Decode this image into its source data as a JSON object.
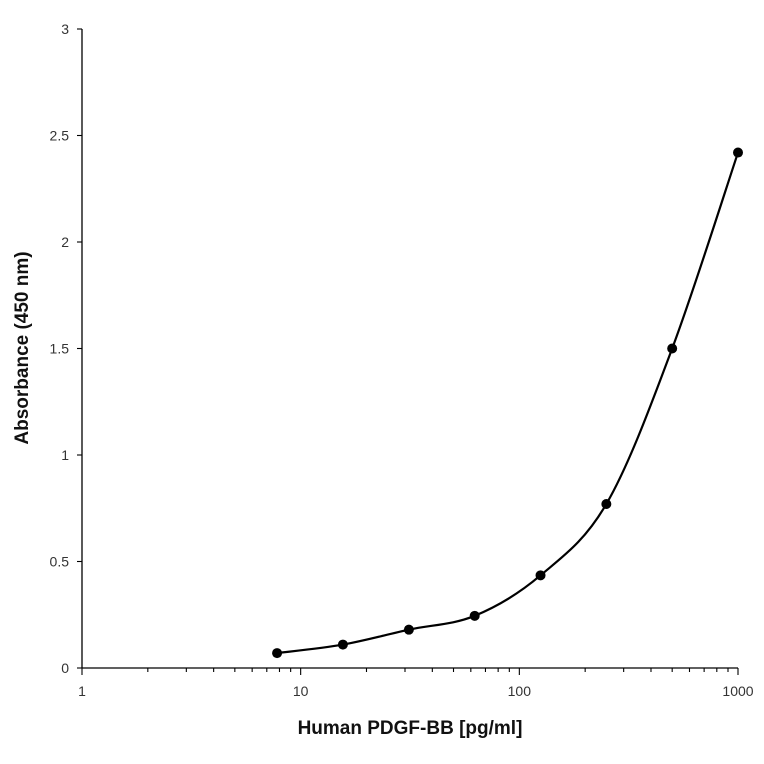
{
  "chart_data": {
    "type": "line",
    "x_scale": "log",
    "xlabel": "Human PDGF-BB [pg/ml]",
    "ylabel": "Absorbance (450 nm)",
    "xlim": [
      1,
      1000
    ],
    "ylim": [
      0,
      3
    ],
    "x_ticks": [
      "1",
      "10",
      "100",
      "1000"
    ],
    "y_ticks": [
      "0",
      "0.5",
      "1",
      "1.5",
      "2",
      "2.5",
      "3"
    ],
    "grid": false,
    "legend": "none",
    "series": [
      {
        "x": [
          7.8,
          15.6,
          31.25,
          62.5,
          125,
          250,
          500,
          1000
        ],
        "y": [
          0.07,
          0.11,
          0.18,
          0.245,
          0.435,
          0.77,
          1.5,
          2.42
        ],
        "color": "#000000",
        "marker": "circle",
        "smooth": true
      }
    ]
  }
}
